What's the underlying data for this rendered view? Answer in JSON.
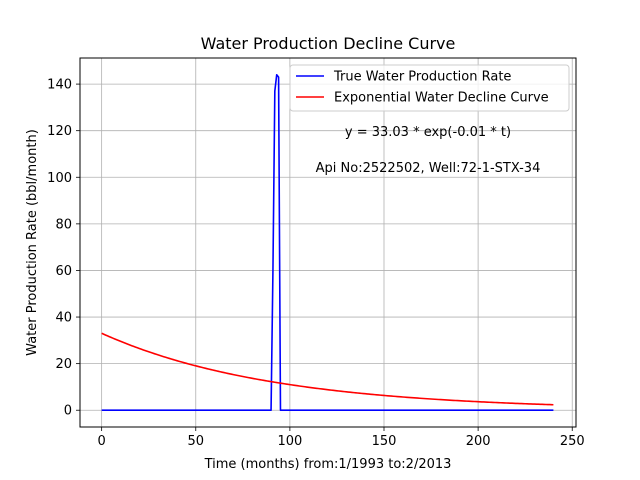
{
  "chart_data": {
    "type": "line",
    "title": "Water Production Decline Curve",
    "xlabel": "Time (months) from:1/1993 to:2/2013",
    "ylabel": "Water Production Rate (bbl/month)",
    "xlim": [
      -11.5,
      252
    ],
    "ylim": [
      -7.2,
      151.2
    ],
    "xticks": [
      0,
      50,
      100,
      150,
      200,
      250
    ],
    "yticks": [
      0,
      20,
      40,
      60,
      80,
      100,
      120,
      140
    ],
    "grid": true,
    "legend_position": "upper-right",
    "annotations": [
      {
        "text": "y = 33.03 * exp(-0.01 * t)"
      },
      {
        "text": "Api No:2522502, Well:72-1-STX-34"
      }
    ],
    "series": [
      {
        "name": "True Water Production Rate",
        "color": "#0000ff",
        "x": [
          0,
          90,
          91,
          92,
          93,
          94,
          95,
          96,
          240
        ],
        "y": [
          0,
          0,
          60,
          137,
          144,
          143,
          0,
          0,
          0
        ]
      },
      {
        "name": "Exponential Water Decline Curve",
        "color": "#ff0000",
        "model": {
          "a": 33.03,
          "b": 0.011,
          "x_start": 0,
          "x_end": 240
        }
      }
    ]
  }
}
